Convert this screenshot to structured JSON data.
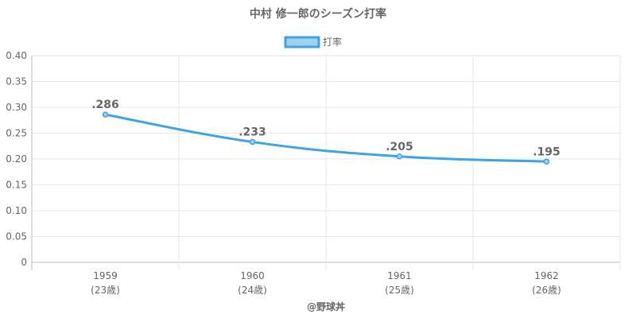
{
  "chart_data": {
    "type": "line",
    "title": "中村 修一郎のシーズン打率",
    "legend": {
      "label": "打率",
      "position": "top-center"
    },
    "x": [
      "1959",
      "1960",
      "1961",
      "1962"
    ],
    "x_sub": [
      "(23歳)",
      "(24歳)",
      "(25歳)",
      "(26歳)"
    ],
    "series": [
      {
        "name": "打率",
        "values": [
          0.286,
          0.233,
          0.205,
          0.195
        ]
      }
    ],
    "data_labels": [
      ".286",
      ".233",
      ".205",
      ".195"
    ],
    "ylim": [
      0,
      0.4
    ],
    "yticks": [
      "0",
      "0.05",
      "0.10",
      "0.15",
      "0.20",
      "0.25",
      "0.30",
      "0.35",
      "0.40"
    ],
    "grid": true,
    "colors": {
      "line": "#3ea3e6",
      "legend_fill": "#9fd1f3",
      "grid": "#e6e6e6",
      "axis": "#bbbbbb"
    }
  },
  "credit": "@野球丼"
}
